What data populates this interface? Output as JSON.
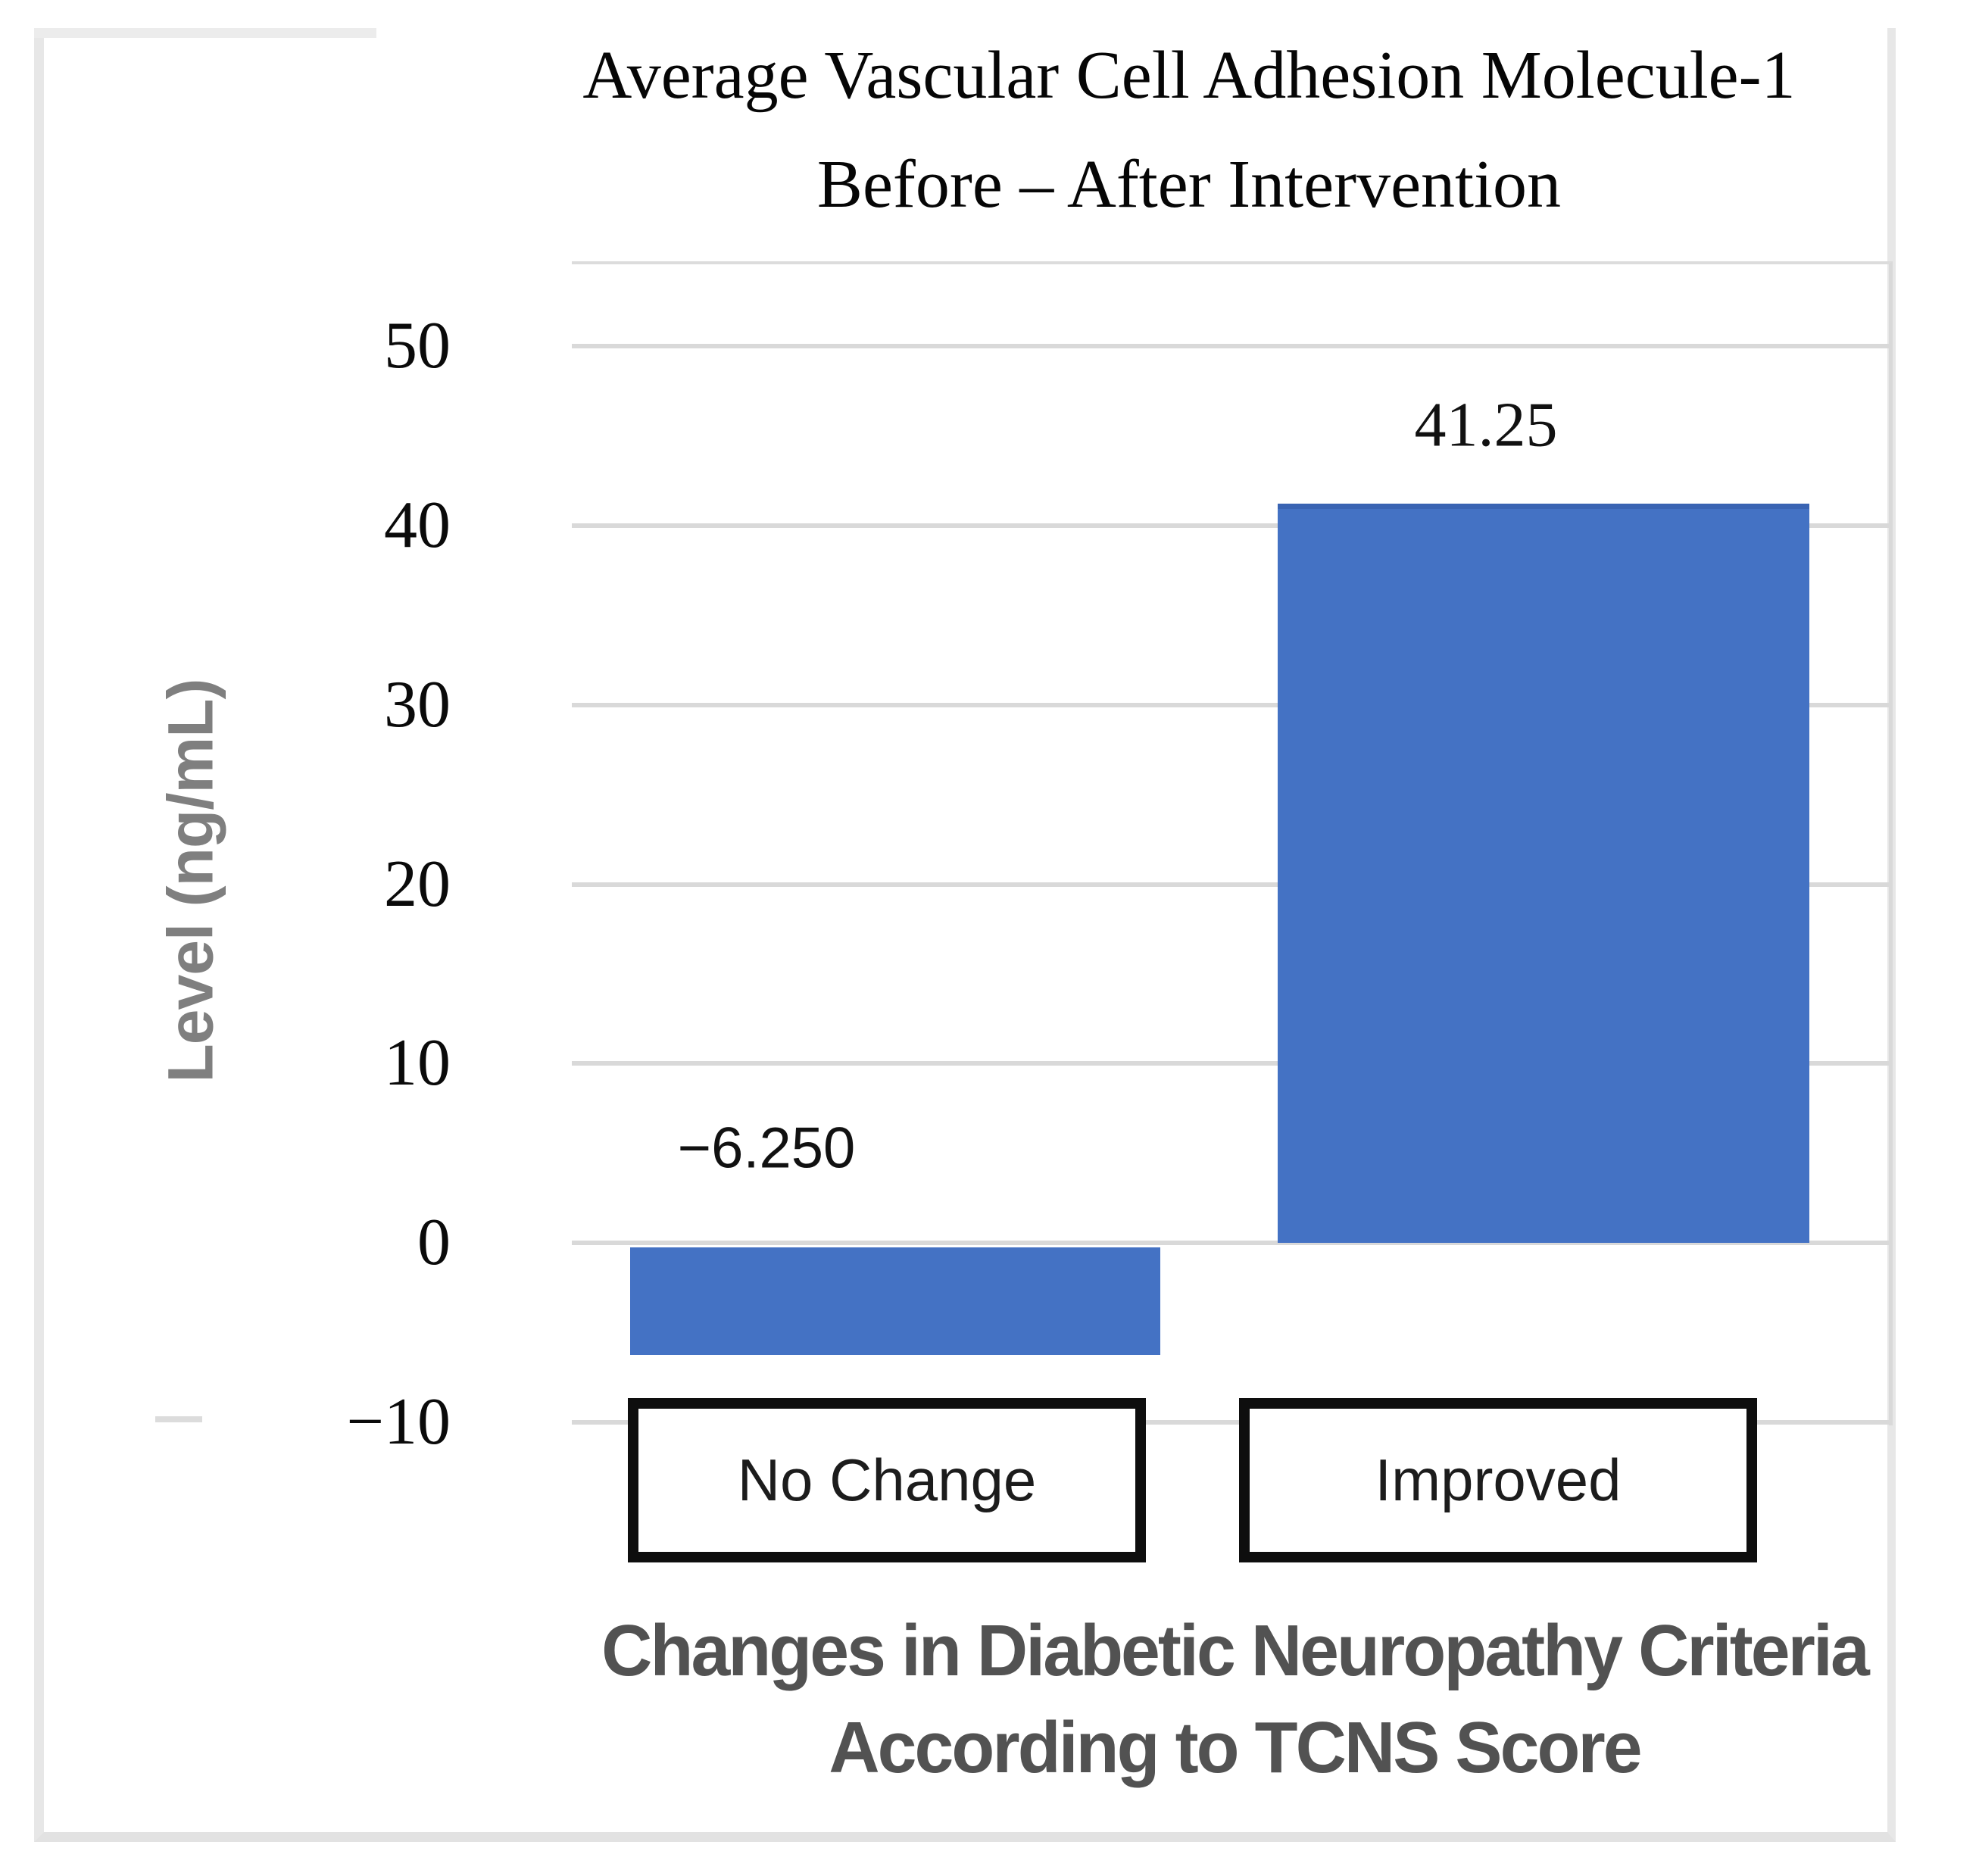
{
  "chart_data": {
    "type": "bar",
    "title": "Average Vascular Cell Adhesion Molecule-1 Before – After Intervention",
    "title_line1": "Average Vascular Cell Adhesion Molecule-1",
    "title_line2": "Before – After Intervention",
    "categories": [
      "No Change",
      "Improved"
    ],
    "values": [
      -6.25,
      41.25
    ],
    "data_labels": [
      "−6.250",
      "41.25"
    ],
    "ylabel": "Level (ng/mL)",
    "xlabel": "Changes in Diabetic Neuropathy Criteria According to TCNS Score",
    "xlabel_line1": "Changes in Diabetic Neuropathy Criteria",
    "xlabel_line2": "According to TCNS Score",
    "y_tick_labels": [
      "50",
      "40",
      "30",
      "20",
      "10",
      "0",
      "−10"
    ],
    "y_tick_values": [
      50,
      40,
      30,
      20,
      10,
      0,
      -10
    ],
    "ylim": [
      -10,
      54.75
    ],
    "grid": true,
    "legend": false,
    "bar_color": "#4472C4",
    "bar_top_edge_color": "#3a64b3",
    "gridline_color": "#d9d9d9",
    "ylabel_color": "#7f7f7f",
    "xlabel_color": "#525252"
  }
}
